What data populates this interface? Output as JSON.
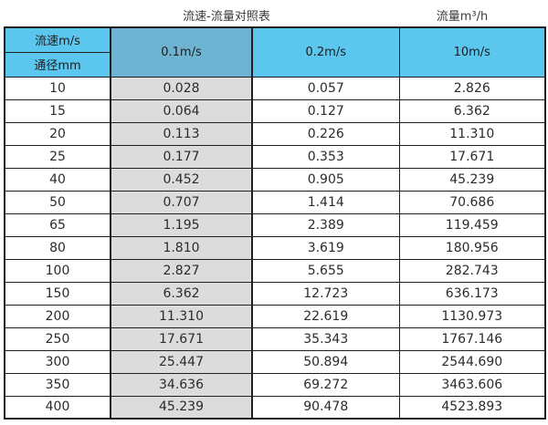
{
  "titles": {
    "main": "流速-流量对照表",
    "unit": "流量m³/h"
  },
  "table": {
    "header": {
      "velocity_label": "流速m/s",
      "diameter_label": "通径mm",
      "col1": "0.1m/s",
      "col2": "0.2m/s",
      "col3": "10m/s"
    },
    "rows": [
      [
        "10",
        "0.028",
        "0.057",
        "2.826"
      ],
      [
        "15",
        "0.064",
        "0.127",
        "6.362"
      ],
      [
        "20",
        "0.113",
        "0.226",
        "11.310"
      ],
      [
        "25",
        "0.177",
        "0.353",
        "17.671"
      ],
      [
        "40",
        "0.452",
        "0.905",
        "45.239"
      ],
      [
        "50",
        "0.707",
        "1.414",
        "70.686"
      ],
      [
        "65",
        "1.195",
        "2.389",
        "119.459"
      ],
      [
        "80",
        "1.810",
        "3.619",
        "180.956"
      ],
      [
        "100",
        "2.827",
        "5.655",
        "282.743"
      ],
      [
        "150",
        "6.362",
        "12.723",
        "636.173"
      ],
      [
        "200",
        "11.310",
        "22.619",
        "1130.973"
      ],
      [
        "250",
        "17.671",
        "35.343",
        "1767.146"
      ],
      [
        "300",
        "25.447",
        "50.894",
        "2544.690"
      ],
      [
        "350",
        "34.636",
        "69.272",
        "3463.606"
      ],
      [
        "400",
        "45.239",
        "90.478",
        "4523.893"
      ]
    ]
  },
  "chart_data": {
    "type": "table",
    "title": "流速-流量对照表",
    "unit_label": "流量m³/h",
    "row_axis_label": "通径mm",
    "col_axis_label": "流速m/s",
    "categories": [
      10,
      15,
      20,
      25,
      40,
      50,
      65,
      80,
      100,
      150,
      200,
      250,
      300,
      350,
      400
    ],
    "series": [
      {
        "name": "0.1m/s",
        "values": [
          0.028,
          0.064,
          0.113,
          0.177,
          0.452,
          0.707,
          1.195,
          1.81,
          2.827,
          6.362,
          11.31,
          17.671,
          25.447,
          34.636,
          45.239
        ]
      },
      {
        "name": "0.2m/s",
        "values": [
          0.057,
          0.127,
          0.226,
          0.353,
          0.905,
          1.414,
          2.389,
          3.619,
          5.655,
          12.723,
          22.619,
          35.343,
          50.894,
          69.272,
          90.478
        ]
      },
      {
        "name": "10m/s",
        "values": [
          2.826,
          6.362,
          11.31,
          17.671,
          45.239,
          70.686,
          119.459,
          180.956,
          282.743,
          636.173,
          1130.973,
          1767.146,
          2544.69,
          3463.606,
          4523.893
        ]
      }
    ]
  },
  "colors": {
    "header_cyan": "#5bc6ee",
    "header_blue": "#6fb3d3",
    "shaded_gray": "#dcdcdc",
    "border": "#1f1f1f"
  }
}
